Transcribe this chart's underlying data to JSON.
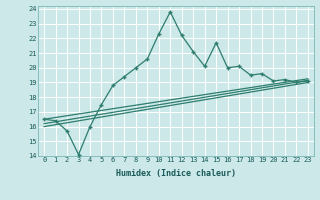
{
  "xlabel": "Humidex (Indice chaleur)",
  "ylabel": "",
  "bg_color": "#cce8e8",
  "line_color": "#2e7d6e",
  "xlim": [
    -0.5,
    23.5
  ],
  "ylim": [
    14,
    24.2
  ],
  "xticks": [
    0,
    1,
    2,
    3,
    4,
    5,
    6,
    7,
    8,
    9,
    10,
    11,
    12,
    13,
    14,
    15,
    16,
    17,
    18,
    19,
    20,
    21,
    22,
    23
  ],
  "yticks": [
    14,
    15,
    16,
    17,
    18,
    19,
    20,
    21,
    22,
    23,
    24
  ],
  "series1_x": [
    0,
    1,
    2,
    3,
    4,
    5,
    6,
    7,
    8,
    9,
    10,
    11,
    12,
    13,
    14,
    15,
    16,
    17,
    18,
    19,
    20,
    21,
    22,
    23
  ],
  "series1_y": [
    16.5,
    16.4,
    15.7,
    14.1,
    16.0,
    17.5,
    18.8,
    19.4,
    20.0,
    20.6,
    22.3,
    23.8,
    22.2,
    21.1,
    20.1,
    21.7,
    20.0,
    20.1,
    19.5,
    19.6,
    19.1,
    19.2,
    19.0,
    19.1
  ],
  "series2_x": [
    0,
    23
  ],
  "series2_y": [
    16.5,
    19.25
  ],
  "series3_x": [
    0,
    23
  ],
  "series3_y": [
    16.0,
    19.0
  ],
  "series4_x": [
    0,
    23
  ],
  "series4_y": [
    16.2,
    19.15
  ],
  "grid_color": "#b0d8d8",
  "tick_fontsize": 5.0,
  "xlabel_fontsize": 6.0
}
